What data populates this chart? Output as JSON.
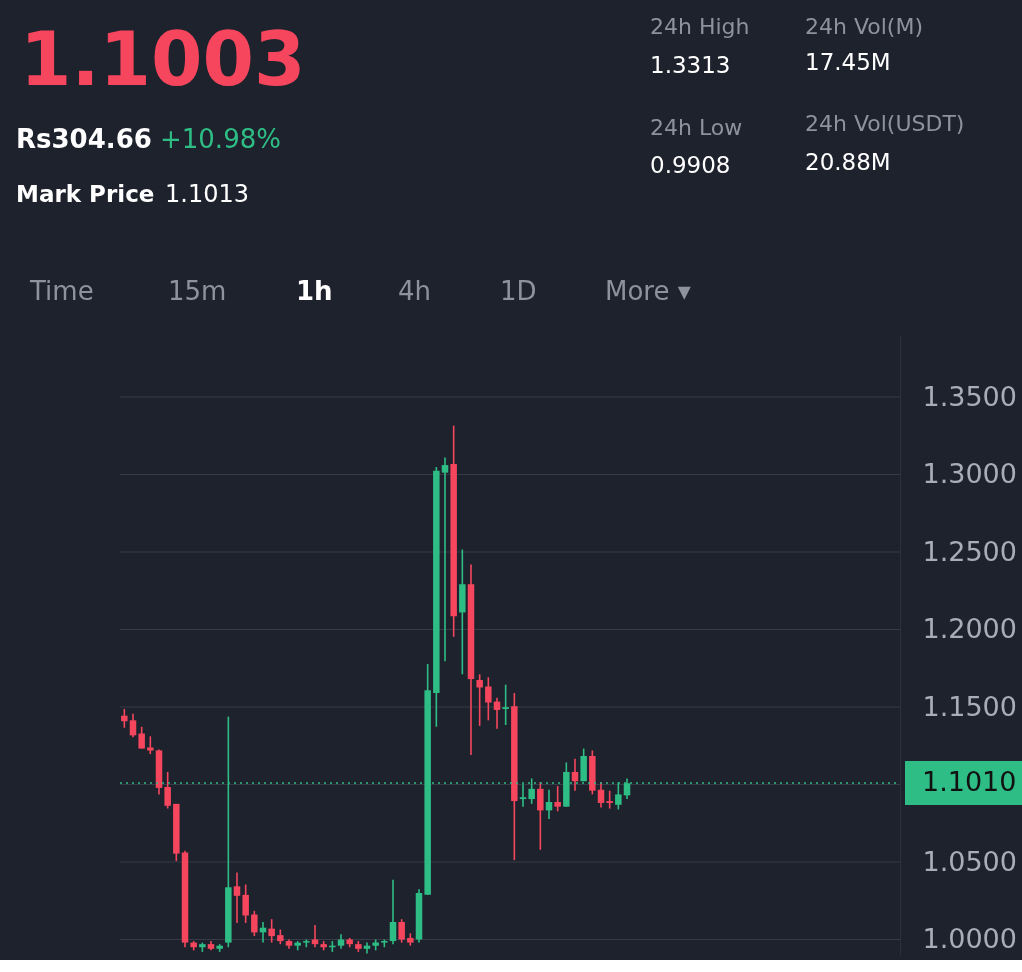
{
  "chart_data": {
    "type": "candlestick",
    "annotations": [
      "1.1003",
      "Rs304.66",
      "+10.98%",
      "Mark Price",
      "1.1013",
      "24h High",
      "1.3313",
      "24h Low",
      "0.9908",
      "24h Vol(M)",
      "17.45M",
      "24h Vol(USDT)",
      "20.88M",
      "Time",
      "15m",
      "1h",
      "4h",
      "1D",
      "More ▾"
    ],
    "categories": [
      null,
      null,
      null,
      null,
      null,
      null,
      null,
      null,
      null,
      null,
      null,
      null,
      null,
      null,
      null,
      null,
      null,
      null,
      null,
      null,
      null,
      null,
      null,
      null,
      null,
      null,
      null,
      null,
      null,
      null,
      null,
      null,
      null,
      null,
      null,
      null,
      null,
      null,
      null,
      null,
      null,
      null,
      null,
      null,
      null,
      null,
      null,
      null,
      null,
      null,
      null,
      null,
      null,
      null,
      null,
      null,
      null,
      null,
      null,
      null,
      null,
      null,
      null,
      null,
      null,
      null,
      null,
      null,
      null,
      null,
      null,
      null,
      null,
      null,
      null,
      null,
      null,
      null,
      null,
      null,
      null,
      null,
      null,
      null,
      null,
      null,
      null,
      null,
      null,
      null
    ],
    "ohlc": [
      [
        1.1444,
        1.1487,
        1.1366,
        1.1408
      ],
      [
        1.1414,
        1.1456,
        1.1305,
        1.1317
      ],
      [
        1.1329,
        1.1372,
        1.1232,
        1.1232
      ],
      [
        1.1238,
        1.1311,
        1.1196,
        1.122
      ],
      [
        1.122,
        1.1226,
        1.0936,
        1.0978
      ],
      [
        1.0984,
        1.1081,
        1.0845,
        1.0863
      ],
      [
        1.0875,
        1.0875,
        1.0506,
        1.0554
      ],
      [
        1.0561,
        1.0573,
        0.995,
        0.998
      ],
      [
        0.998,
        0.999,
        0.993,
        0.995
      ],
      [
        0.995,
        0.998,
        0.992,
        0.997
      ],
      [
        0.997,
        0.999,
        0.993,
        0.994
      ],
      [
        0.994,
        0.997,
        0.992,
        0.996
      ],
      [
        0.998,
        1.1438,
        0.995,
        1.0337
      ],
      [
        1.0343,
        1.0433,
        1.0107,
        1.0282
      ],
      [
        1.0288,
        1.0355,
        1.0107,
        1.0155
      ],
      [
        1.0161,
        1.0185,
        1.0022,
        1.0046
      ],
      [
        1.0046,
        1.0113,
        0.998,
        1.0076
      ],
      [
        1.007,
        1.0131,
        0.998,
        1.0022
      ],
      [
        1.0028,
        1.0064,
        0.997,
        0.999
      ],
      [
        0.999,
        1.0,
        0.994,
        0.996
      ],
      [
        0.996,
        0.999,
        0.993,
        0.998
      ],
      [
        0.998,
        1.0,
        0.995,
        0.999
      ],
      [
        1.0,
        1.0094,
        0.995,
        0.997
      ],
      [
        0.997,
        0.999,
        0.993,
        0.995
      ],
      [
        0.995,
        0.999,
        0.992,
        0.996
      ],
      [
        0.996,
        1.0034,
        0.994,
        1.0
      ],
      [
        1.0,
        1.001,
        0.995,
        0.997
      ],
      [
        0.997,
        0.999,
        0.992,
        0.994
      ],
      [
        0.994,
        0.998,
        0.991,
        0.996
      ],
      [
        0.996,
        1.0,
        0.993,
        0.998
      ],
      [
        0.998,
        1.0,
        0.995,
        0.999
      ],
      [
        0.999,
        1.0385,
        0.997,
        1.0113
      ],
      [
        1.0113,
        1.0131,
        0.998,
        1.0
      ],
      [
        1.001,
        1.004,
        0.996,
        0.998
      ],
      [
        1.0,
        1.0324,
        0.998,
        1.03
      ],
      [
        1.0288,
        1.1777,
        1.0288,
        1.1608
      ],
      [
        1.159,
        1.3048,
        1.1372,
        1.3024
      ],
      [
        1.3012,
        1.3109,
        1.1795,
        1.3061
      ],
      [
        1.3067,
        1.3315,
        1.1953,
        1.2086
      ],
      [
        1.211,
        1.2516,
        1.1711,
        1.2292
      ],
      [
        1.2292,
        1.2419,
        1.119,
        1.168
      ],
      [
        1.1674,
        1.1711,
        1.1378,
        1.1626
      ],
      [
        1.1632,
        1.1692,
        1.1414,
        1.1529
      ],
      [
        1.1535,
        1.1559,
        1.136,
        1.1481
      ],
      [
        1.1487,
        1.1644,
        1.1384,
        1.1499
      ],
      [
        1.1505,
        1.159,
        1.0512,
        1.0893
      ],
      [
        1.0906,
        1.1002,
        1.0857,
        1.0918
      ],
      [
        1.0906,
        1.1039,
        1.0875,
        1.0972
      ],
      [
        1.0972,
        1.1015,
        1.0579,
        1.0833
      ],
      [
        1.0833,
        1.0966,
        1.0778,
        1.0887
      ],
      [
        1.0887,
        1.099,
        1.0827,
        1.0857
      ],
      [
        1.0857,
        1.1142,
        1.0857,
        1.1081
      ],
      [
        1.1081,
        1.1166,
        1.096,
        1.1021
      ],
      [
        1.1021,
        1.1232,
        1.1021,
        1.1184
      ],
      [
        1.1184,
        1.122,
        1.0936,
        1.096
      ],
      [
        1.0966,
        1.1015,
        1.0851,
        1.0881
      ],
      [
        1.0893,
        1.096,
        1.0845,
        1.0881
      ],
      [
        1.0869,
        1.1015,
        1.0839,
        1.0936
      ],
      [
        1.093,
        1.1039,
        1.0906,
        1.1008
      ],
      null,
      null,
      null,
      null,
      null,
      null,
      null,
      null,
      null,
      null,
      null,
      null,
      null,
      null,
      null,
      null,
      null,
      null,
      null,
      null,
      null,
      null,
      null,
      null,
      null,
      null,
      null,
      null,
      null,
      null,
      null
    ],
    "ylim": [
      0.99,
      1.39
    ],
    "yticks": [
      {
        "value": 1.0,
        "label": "1.0000"
      },
      {
        "value": 1.05,
        "label": "1.0500"
      },
      {
        "value": 1.1,
        "label": null
      },
      {
        "value": 1.15,
        "label": "1.1500"
      },
      {
        "value": 1.2,
        "label": "1.2000"
      },
      {
        "value": 1.25,
        "label": "1.2500"
      },
      {
        "value": 1.3,
        "label": "1.3000"
      },
      {
        "value": 1.35,
        "label": "1.3500"
      }
    ],
    "tick_labels": "y",
    "grid": "y",
    "ref_lines": [
      {
        "axis": "y",
        "value": 1.101,
        "label": "1.1010",
        "color": "#2ebd85",
        "line_style": "dotted"
      }
    ]
  }
}
